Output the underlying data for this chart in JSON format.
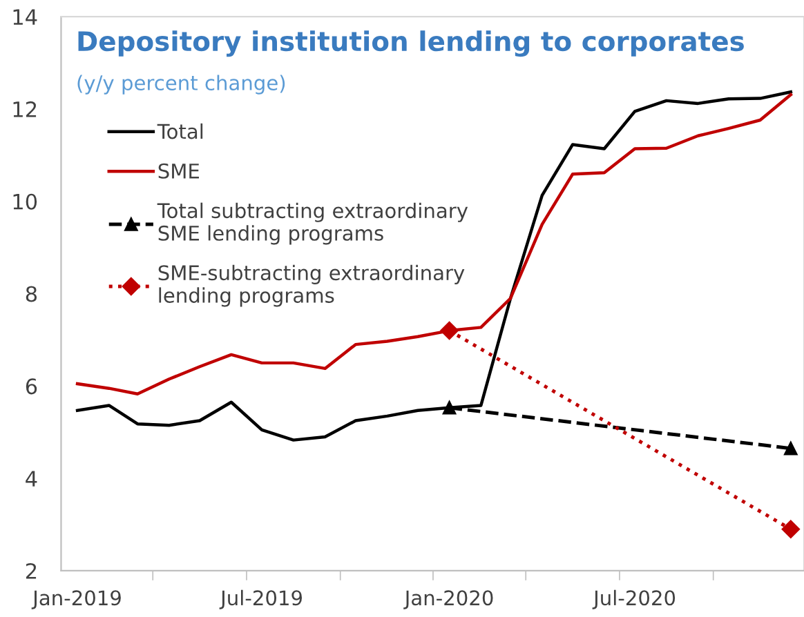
{
  "chart_data": {
    "type": "line",
    "title": "Depository institution lending to corporates",
    "subtitle": "(y/y percent change)",
    "x": [
      "2019-01",
      "2019-02",
      "2019-03",
      "2019-04",
      "2019-05",
      "2019-06",
      "2019-07",
      "2019-08",
      "2019-09",
      "2019-10",
      "2019-11",
      "2019-12",
      "2020-01",
      "2020-02",
      "2020-03",
      "2020-04",
      "2020-05",
      "2020-06",
      "2020-07",
      "2020-08",
      "2020-09",
      "2020-10",
      "2020-11",
      "2020-12"
    ],
    "series": [
      {
        "name": "Total",
        "color": "#000000",
        "line_style": "solid",
        "marker": "none",
        "values": [
          5.47,
          5.58,
          5.18,
          5.15,
          5.25,
          5.65,
          5.05,
          4.83,
          4.9,
          5.25,
          5.35,
          5.47,
          5.53,
          5.58,
          7.9,
          10.13,
          11.23,
          11.14,
          11.95,
          12.18,
          12.12,
          12.22,
          12.23,
          12.37
        ]
      },
      {
        "name": "SME",
        "color": "#c00000",
        "line_style": "solid",
        "marker": "none",
        "values": [
          6.05,
          5.95,
          5.83,
          6.15,
          6.42,
          6.68,
          6.5,
          6.5,
          6.38,
          6.9,
          6.97,
          7.07,
          7.2,
          7.27,
          7.9,
          9.5,
          10.59,
          10.62,
          11.14,
          11.15,
          11.42,
          11.58,
          11.76,
          12.31
        ]
      },
      {
        "name": "Total subtracting extraordinary\nSME lending programs",
        "color": "#000000",
        "line_style": "dashed",
        "marker": "triangle",
        "x": [
          "2020-01",
          "2020-12"
        ],
        "values": [
          5.53,
          4.65
        ]
      },
      {
        "name": "SME-subtracting extraordinary\nlending programs",
        "color": "#c00000",
        "line_style": "dotted",
        "marker": "diamond",
        "x": [
          "2020-01",
          "2020-12"
        ],
        "values": [
          7.2,
          2.9
        ]
      }
    ],
    "xlim": [
      "2018-12-16",
      "2020-12-14"
    ],
    "xticks": [
      {
        "value": "2019-01",
        "label": "Jan-2019"
      },
      {
        "value": "2019-07",
        "label": "Jul-2019"
      },
      {
        "value": "2020-01",
        "label": "Jan-2020"
      },
      {
        "value": "2020-07",
        "label": "Jul-2020"
      },
      {
        "value": "2019-03-16",
        "label": null
      },
      {
        "value": "2019-06-16",
        "label": null
      },
      {
        "value": "2019-09-16",
        "label": null
      },
      {
        "value": "2019-12-16",
        "label": null
      },
      {
        "value": "2020-03-16",
        "label": null
      },
      {
        "value": "2020-06-16",
        "label": null
      },
      {
        "value": "2020-09-16",
        "label": null
      }
    ],
    "ylim": [
      2,
      14
    ],
    "yticks": [
      2,
      4,
      6,
      8,
      10,
      12,
      14
    ],
    "grid": false,
    "legend": "top left"
  }
}
